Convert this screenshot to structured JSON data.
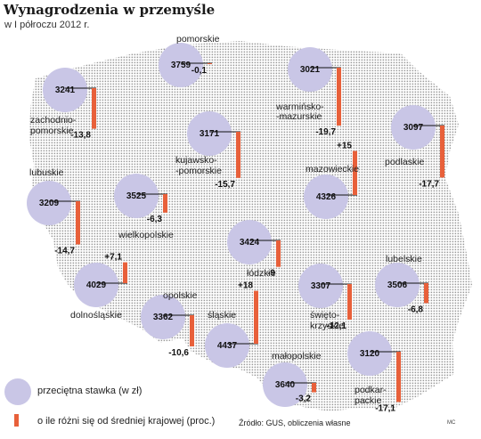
{
  "title": "Wynagrodzenia w przemyśle",
  "subtitle": "w I półroczu 2012 r.",
  "legend": {
    "circle_label": "przeciętna stawka (w zł)",
    "bar_label": "o ile różni się od średniej krajowej (proc.)"
  },
  "source": "Źródło: GUS, obliczenia własne",
  "credit": "MC",
  "colors": {
    "circle": "#c9c6e6",
    "bar": "#e8603a",
    "map_dots": "#9a9a9a"
  },
  "chart_data": {
    "type": "map-bubble-bar",
    "value_unit": "zł",
    "diff_unit": "proc.",
    "regions": [
      {
        "name": "pomorskie",
        "wage": 3759,
        "diff": -0.1
      },
      {
        "name": "warmińsko-mazurskie",
        "wage": 3021,
        "diff": -19.7
      },
      {
        "name": "zachodnio-pomorskie",
        "wage": 3241,
        "diff": -13.8
      },
      {
        "name": "kujawsko-pomorskie",
        "wage": 3171,
        "diff": -15.7
      },
      {
        "name": "podlaskie",
        "wage": 3097,
        "diff": -17.7
      },
      {
        "name": "lubuskie",
        "wage": 3209,
        "diff": -14.7
      },
      {
        "name": "wielkopolskie",
        "wage": 3525,
        "diff": -6.3
      },
      {
        "name": "mazowieckie",
        "wage": 4326,
        "diff": 15
      },
      {
        "name": "łódzkie",
        "wage": 3424,
        "diff": -9
      },
      {
        "name": "dolnośląskie",
        "wage": 4029,
        "diff": 7.1
      },
      {
        "name": "lubelskie",
        "wage": 3506,
        "diff": -6.8
      },
      {
        "name": "opolskie",
        "wage": 3362,
        "diff": -10.6
      },
      {
        "name": "śląskie",
        "wage": 4437,
        "diff": 18
      },
      {
        "name": "świętokrzyskie",
        "wage": 3307,
        "diff": -12.1
      },
      {
        "name": "małopolskie",
        "wage": 3640,
        "diff": -3.2
      },
      {
        "name": "podkarpackie",
        "wage": 3120,
        "diff": -17.1
      }
    ],
    "labels": {
      "pomorskie": [
        "pomorskie"
      ],
      "warmińsko-mazurskie": [
        "warmińsko-",
        "-mazurskie"
      ],
      "zachodnio-pomorskie": [
        "zachodnio-",
        "pomorskie"
      ],
      "kujawsko-pomorskie": [
        "kujawsko-",
        "-pomorskie"
      ],
      "podlaskie": [
        "podlaskie"
      ],
      "lubuskie": [
        "lubuskie"
      ],
      "wielkopolskie": [
        "wielkopolskie"
      ],
      "mazowieckie": [
        "mazowieckie"
      ],
      "łódzkie": [
        "łódzkie"
      ],
      "dolnośląskie": [
        "dolnośląskie"
      ],
      "lubelskie": [
        "lubelskie"
      ],
      "opolskie": [
        "opolskie"
      ],
      "śląskie": [
        "śląskie"
      ],
      "świętokrzyskie": [
        "święto-",
        "krzyskie"
      ],
      "małopolskie": [
        "małopolskie"
      ],
      "podkarpackie": [
        "podkar-",
        "packie"
      ]
    },
    "diff_labels": {
      "pomorskie": "-0,1",
      "warmińsko-mazurskie": "-19,7",
      "zachodnio-pomorskie": "-13,8",
      "kujawsko-pomorskie": "-15,7",
      "podlaskie": "-17,7",
      "lubuskie": "-14,7",
      "wielkopolskie": "-6,3",
      "mazowieckie": "+15",
      "łódzkie": "-9",
      "dolnośląskie": "+7,1",
      "lubelskie": "-6,8",
      "opolskie": "-10,6",
      "śląskie": "+18",
      "świętokrzyskie": "-12,1",
      "małopolskie": "-3,2",
      "podkarpackie": "-17,1"
    }
  }
}
